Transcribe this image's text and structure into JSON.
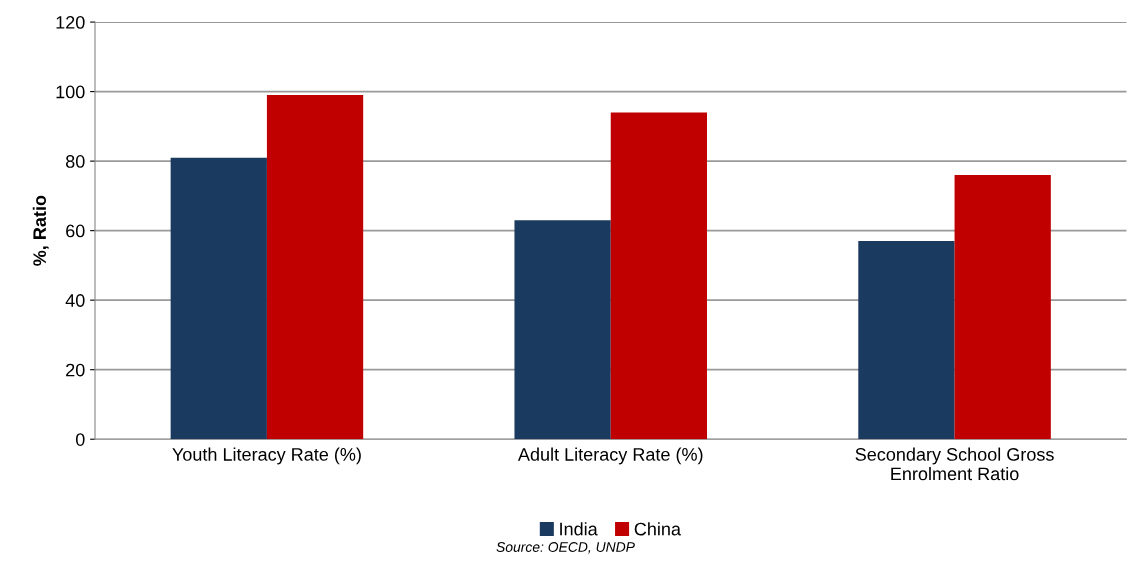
{
  "chart_data": {
    "type": "bar",
    "ylabel": "%, Ratio",
    "categories": [
      "Youth Literacy Rate (%)",
      "Adult Literacy Rate (%)",
      "Secondary School Gross\nEnrolment Ratio"
    ],
    "series": [
      {
        "name": "India",
        "color": "#1b3a5f",
        "values": [
          81,
          63,
          57
        ]
      },
      {
        "name": "China",
        "color": "#c00000",
        "values": [
          99,
          94,
          76
        ]
      }
    ],
    "ylim": [
      0,
      120
    ],
    "yticks": [
      0,
      20,
      40,
      60,
      80,
      100,
      120
    ],
    "grid": "y",
    "legend": "bottom",
    "annotations": [
      "Source: OECD, UNDP"
    ]
  }
}
